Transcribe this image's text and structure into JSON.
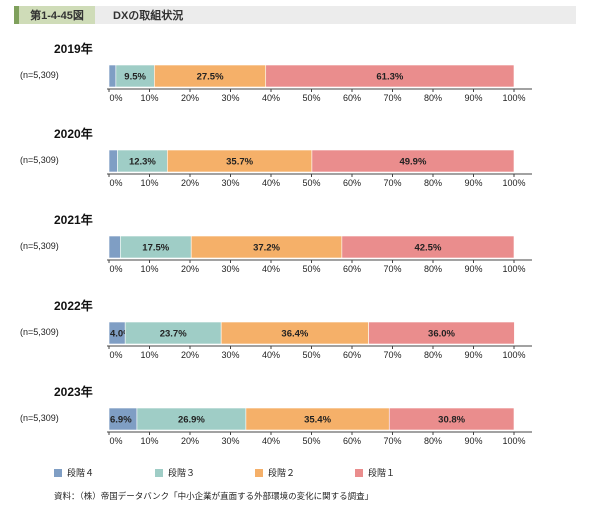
{
  "header": {
    "figure_number": "第1-4-45図",
    "title": "DXの取組状況"
  },
  "legend": [
    {
      "label": "段階４",
      "color": "#7f9ec4"
    },
    {
      "label": "段階３",
      "color": "#9fcdc6"
    },
    {
      "label": "段階２",
      "color": "#f5b069"
    },
    {
      "label": "段階１",
      "color": "#ea8d8d"
    }
  ],
  "source": "資料：（株）帝国データバンク「中小企業が直面する外部環境の変化に関する調査」",
  "chart_data": {
    "type": "bar",
    "orientation": "horizontal",
    "stacked": true,
    "xlim": [
      0,
      100
    ],
    "ticks": [
      "0%",
      "10%",
      "20%",
      "30%",
      "40%",
      "50%",
      "60%",
      "70%",
      "80%",
      "90%",
      "100%"
    ],
    "series_names": [
      "段階４",
      "段階３",
      "段階２",
      "段階１"
    ],
    "panels": [
      {
        "year": "2019年",
        "n": "(n=5,309)",
        "values": [
          1.7,
          9.5,
          27.5,
          61.3
        ],
        "labels": [
          "",
          "9.5%",
          "27.5%",
          "61.3%"
        ]
      },
      {
        "year": "2020年",
        "n": "(n=5,309)",
        "values": [
          2.1,
          12.3,
          35.7,
          49.9
        ],
        "labels": [
          "",
          "12.3%",
          "35.7%",
          "49.9%"
        ]
      },
      {
        "year": "2021年",
        "n": "(n=5,309)",
        "values": [
          2.8,
          17.5,
          37.2,
          42.5
        ],
        "labels": [
          "",
          "17.5%",
          "37.2%",
          "42.5%"
        ]
      },
      {
        "year": "2022年",
        "n": "(n=5,309)",
        "values": [
          4.0,
          23.7,
          36.4,
          36.0
        ],
        "labels": [
          "4.0%",
          "23.7%",
          "36.4%",
          "36.0%"
        ]
      },
      {
        "year": "2023年",
        "n": "(n=5,309)",
        "values": [
          6.9,
          26.9,
          35.4,
          30.8
        ],
        "labels": [
          "6.9%",
          "26.9%",
          "35.4%",
          "30.8%"
        ]
      }
    ]
  }
}
